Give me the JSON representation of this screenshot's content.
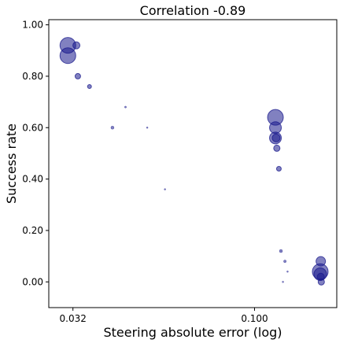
{
  "chart_data": {
    "type": "scatter",
    "title": "Correlation -0.89",
    "xlabel": "Steering absolute error (log)",
    "ylabel": "Success rate",
    "x_scale": "log",
    "xlim": [
      0.0275,
      0.1675
    ],
    "ylim": [
      -0.1,
      1.02
    ],
    "x_ticks": [
      {
        "value": 0.032,
        "label": "0.032"
      },
      {
        "value": 0.1,
        "label": "0.100"
      }
    ],
    "y_ticks": [
      {
        "value": 0.0,
        "label": "0.00"
      },
      {
        "value": 0.2,
        "label": "0.20"
      },
      {
        "value": 0.4,
        "label": "0.40"
      },
      {
        "value": 0.6,
        "label": "0.60"
      },
      {
        "value": 0.8,
        "label": "0.80"
      },
      {
        "value": 1.0,
        "label": "1.00"
      }
    ],
    "grid": false,
    "marker_color": "#1a1a8c",
    "marker_opacity": 0.55,
    "points": [
      {
        "x": 0.031,
        "y": 0.92,
        "s": 10
      },
      {
        "x": 0.031,
        "y": 0.88,
        "s": 10
      },
      {
        "x": 0.0327,
        "y": 0.92,
        "s": 4.5
      },
      {
        "x": 0.033,
        "y": 0.8,
        "s": 3.5
      },
      {
        "x": 0.0355,
        "y": 0.76,
        "s": 2.5
      },
      {
        "x": 0.041,
        "y": 0.6,
        "s": 2
      },
      {
        "x": 0.0445,
        "y": 0.68,
        "s": 1.2
      },
      {
        "x": 0.051,
        "y": 0.6,
        "s": 1
      },
      {
        "x": 0.057,
        "y": 0.36,
        "s": 1
      },
      {
        "x": 0.114,
        "y": 0.64,
        "s": 10
      },
      {
        "x": 0.114,
        "y": 0.6,
        "s": 7.5
      },
      {
        "x": 0.114,
        "y": 0.56,
        "s": 7.5
      },
      {
        "x": 0.1145,
        "y": 0.56,
        "s": 5
      },
      {
        "x": 0.115,
        "y": 0.52,
        "s": 4
      },
      {
        "x": 0.1165,
        "y": 0.44,
        "s": 3
      },
      {
        "x": 0.118,
        "y": 0.12,
        "s": 2
      },
      {
        "x": 0.121,
        "y": 0.08,
        "s": 1.7
      },
      {
        "x": 0.123,
        "y": 0.04,
        "s": 1
      },
      {
        "x": 0.1195,
        "y": 0.0,
        "s": 1
      },
      {
        "x": 0.151,
        "y": 0.04,
        "s": 10
      },
      {
        "x": 0.151,
        "y": 0.03,
        "s": 8
      },
      {
        "x": 0.1515,
        "y": 0.08,
        "s": 6
      },
      {
        "x": 0.1515,
        "y": 0.02,
        "s": 4.5
      },
      {
        "x": 0.152,
        "y": 0.0,
        "s": 4
      }
    ]
  }
}
